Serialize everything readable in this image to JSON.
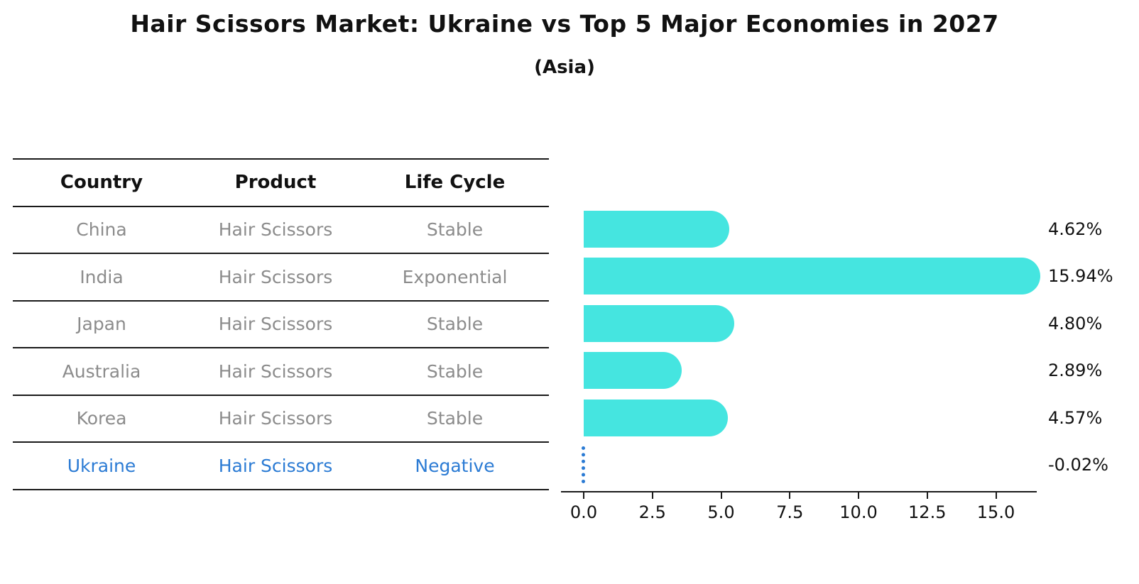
{
  "title": "Hair Scissors Market: Ukraine vs Top 5 Major Economies in 2027",
  "subtitle": "(Asia)",
  "table": {
    "headers": [
      "Country",
      "Product",
      "Life Cycle"
    ],
    "rows": [
      {
        "country": "China",
        "product": "Hair Scissors",
        "life_cycle": "Stable"
      },
      {
        "country": "India",
        "product": "Hair Scissors",
        "life_cycle": "Exponential"
      },
      {
        "country": "Japan",
        "product": "Hair Scissors",
        "life_cycle": "Stable"
      },
      {
        "country": "Australia",
        "product": "Hair Scissors",
        "life_cycle": "Stable"
      },
      {
        "country": "Korea",
        "product": "Hair Scissors",
        "life_cycle": "Stable"
      },
      {
        "country": "Ukraine",
        "product": "Hair Scissors",
        "life_cycle": "Negative"
      }
    ],
    "highlight_row": "Ukraine"
  },
  "chart_data": {
    "type": "bar",
    "orientation": "horizontal",
    "title": "Hair Scissors Market: Ukraine vs Top 5 Major Economies in 2027",
    "subtitle": "(Asia)",
    "categories": [
      "China",
      "India",
      "Japan",
      "Australia",
      "Korea",
      "Ukraine"
    ],
    "values": [
      4.62,
      15.94,
      4.8,
      2.89,
      4.57,
      -0.02
    ],
    "value_labels": [
      "4.62%",
      "15.94%",
      "4.80%",
      "2.89%",
      "4.57%",
      "-0.02%"
    ],
    "xticks": [
      0.0,
      2.5,
      5.0,
      7.5,
      10.0,
      12.5,
      15.0
    ],
    "xtick_labels": [
      "0.0",
      "2.5",
      "5.0",
      "7.5",
      "10.0",
      "12.5",
      "15.0"
    ],
    "xlim": [
      0,
      16.6
    ],
    "grid": false,
    "legend": false,
    "bar_color": "#45e5e0",
    "highlight_color": "#2b7bd4",
    "highlight_style": "dotted-zero-line"
  },
  "colors": {
    "background": "#ffffff",
    "text": "#111111",
    "muted_text": "#8c8c8c",
    "line": "#1a1a1a",
    "bar": "#45e5e0",
    "highlight_blue": "#2b7bd4"
  }
}
